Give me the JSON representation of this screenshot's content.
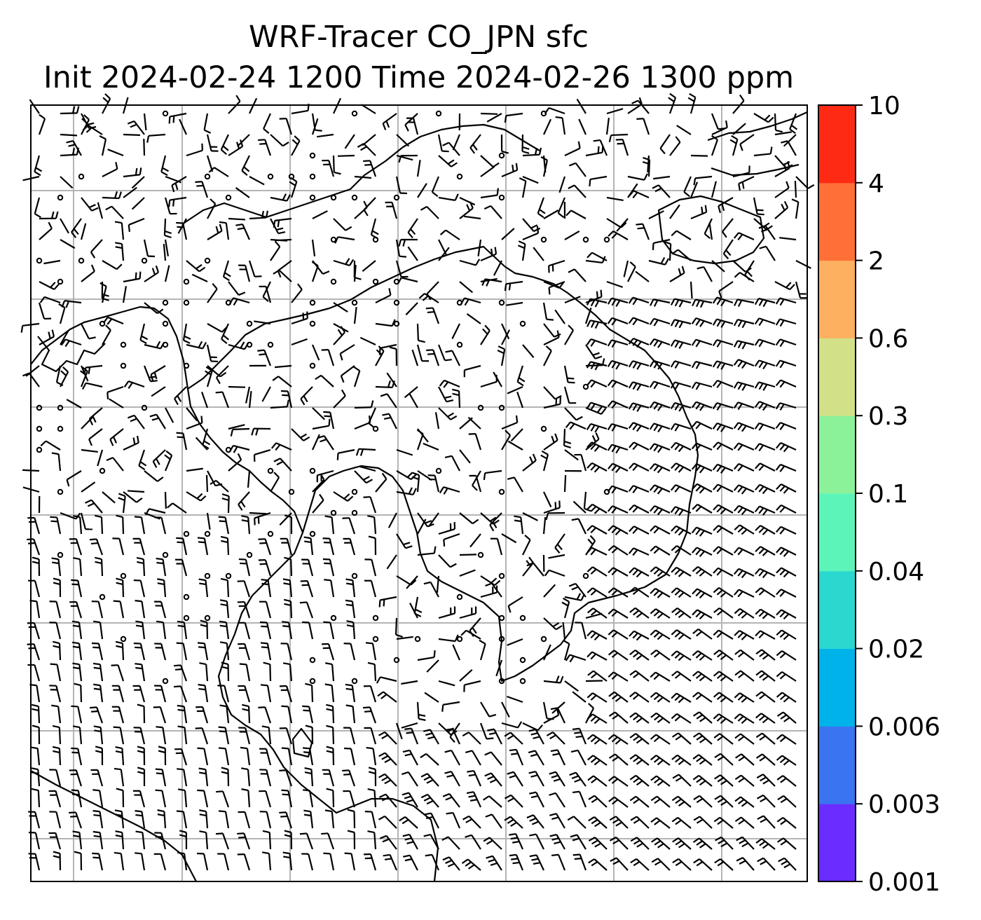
{
  "title": {
    "line1": "WRF-Tracer CO_JPN sfc",
    "line2": "Init 2024-02-24 1200 Time 2024-02-26 1300 ppm"
  },
  "map": {
    "gridlines": true,
    "overlay": "wind barbs",
    "coastlines": true
  },
  "colorbar": {
    "levels": [
      "0.001",
      "0.003",
      "0.006",
      "0.02",
      "0.04",
      "0.1",
      "0.3",
      "0.6",
      "2",
      "4",
      "10"
    ],
    "colors": [
      "#6a2cff",
      "#3a74f0",
      "#00b2ea",
      "#2ad8d0",
      "#5cf4b8",
      "#8cf29a",
      "#d2e088",
      "#fcb060",
      "#ff7038",
      "#ff2a14"
    ]
  },
  "colors": {
    "frame": "#000000",
    "grid": "#b4b4b4",
    "barbs": "#000000"
  }
}
